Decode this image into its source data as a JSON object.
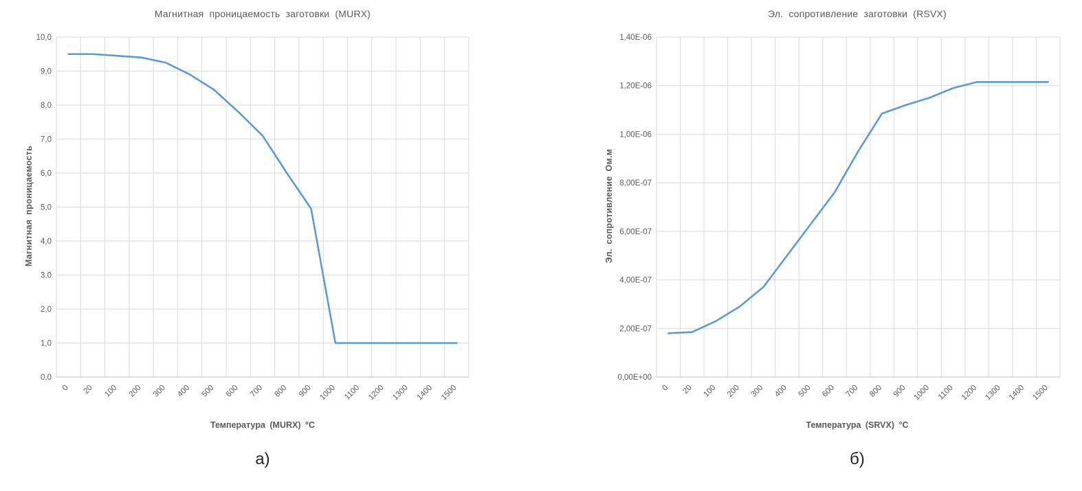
{
  "style": {
    "background": "#ffffff",
    "line_color": "#5B9BD5",
    "grid_color": "#D9D9D9",
    "axis_color": "#BFBFBF",
    "text_color": "#595959",
    "caption_color": "#262626"
  },
  "chart_data": [
    {
      "type": "line",
      "title": "Магнитная проницаемость заготовки (MURX)",
      "xlabel": "Температура (MURX) °C",
      "ylabel": "Магнитная проницаемость",
      "caption": "а)",
      "legend": "none",
      "grid": true,
      "categories": [
        "0",
        "20",
        "100",
        "200",
        "300",
        "400",
        "500",
        "600",
        "700",
        "800",
        "900",
        "1000",
        "1100",
        "1200",
        "1300",
        "1400",
        "1500"
      ],
      "values": [
        9.5,
        9.5,
        9.45,
        9.4,
        9.25,
        8.9,
        8.45,
        7.8,
        7.1,
        6.0,
        4.95,
        1.0,
        1.0,
        1.0,
        1.0,
        1.0,
        1.0
      ],
      "ylim": [
        0,
        10
      ],
      "y_tick_labels": [
        "0,0",
        "1,0",
        "2,0",
        "3,0",
        "4,0",
        "5,0",
        "6,0",
        "7,0",
        "8,0",
        "9,0",
        "10,0"
      ]
    },
    {
      "type": "line",
      "title": "Эл. сопротивление заготовки (RSVX)",
      "xlabel": "Температура (SRVX) °C",
      "ylabel": "Эл. сопротивление Ом.м",
      "caption": "б)",
      "legend": "none",
      "grid": true,
      "categories": [
        "0",
        "20",
        "100",
        "200",
        "300",
        "400",
        "500",
        "600",
        "700",
        "800",
        "900",
        "1000",
        "1100",
        "1200",
        "1300",
        "1400",
        "1500"
      ],
      "values": [
        1.8e-07,
        1.85e-07,
        2.3e-07,
        2.9e-07,
        3.7e-07,
        5e-07,
        6.3e-07,
        7.6e-07,
        9.3e-07,
        1.085e-06,
        1.12e-06,
        1.15e-06,
        1.19e-06,
        1.215e-06,
        1.215e-06,
        1.215e-06,
        1.215e-06
      ],
      "ylim": [
        0,
        1.4e-06
      ],
      "y_tick_labels": [
        "0,00E+00",
        "2,00E-07",
        "4,00E-07",
        "6,00E-07",
        "8,00E-07",
        "1,00E-06",
        "1,20E-06",
        "1,40E-06"
      ]
    }
  ]
}
